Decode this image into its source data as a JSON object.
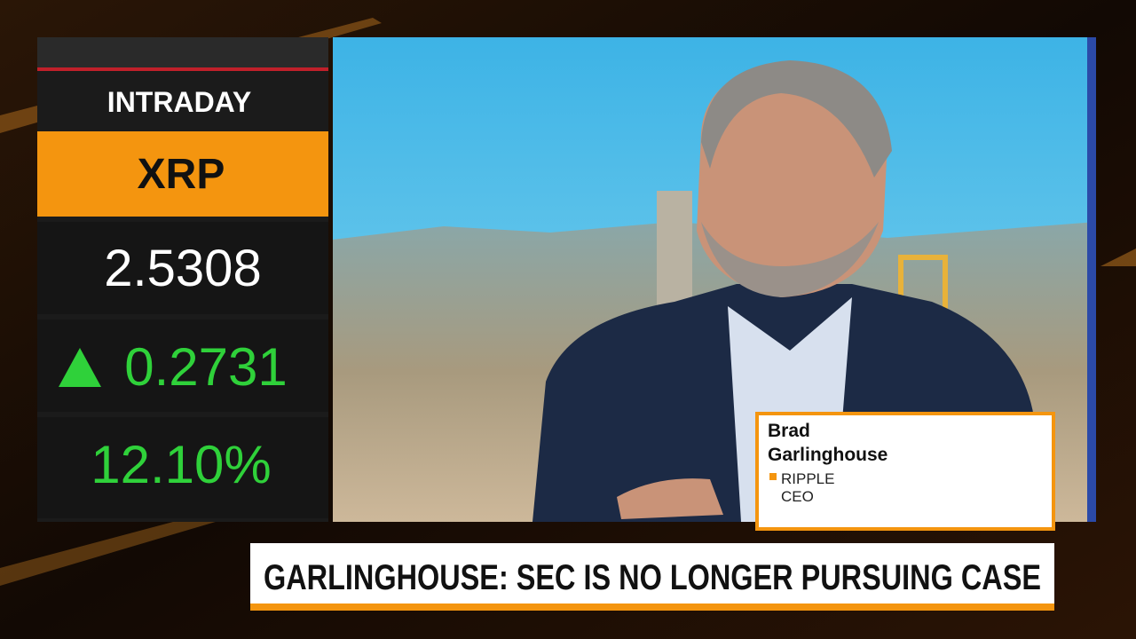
{
  "ticker": {
    "label": "INTRADAY",
    "symbol": "XRP",
    "price": "2.5308",
    "change": "0.2731",
    "percent_change": "12.10%"
  },
  "lower_third": {
    "name": "Brad Garlinghouse",
    "company": "RIPPLE",
    "title": "CEO"
  },
  "headline": "GARLINGHOUSE: SEC IS NO LONGER PURSUING CASE"
}
